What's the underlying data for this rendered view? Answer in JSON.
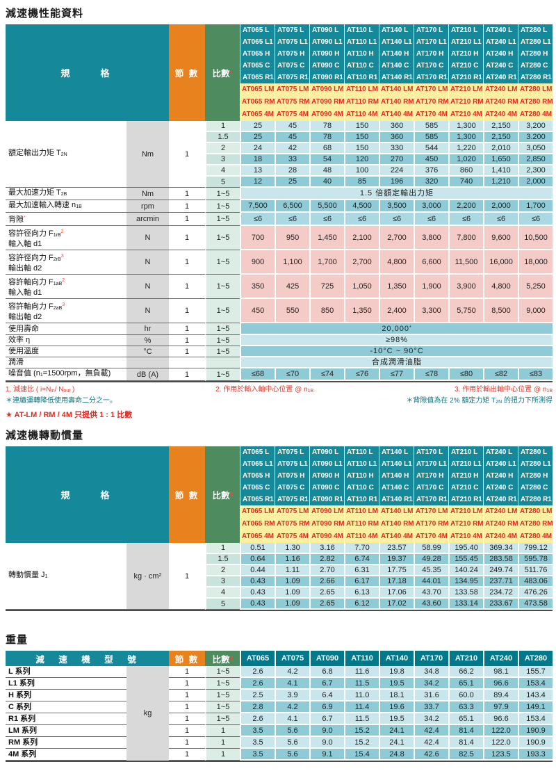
{
  "colors": {
    "teal": "#15899A",
    "teal_dark": "#02798B",
    "orange": "#E8821E",
    "green": "#4E8B5F",
    "yellow": "#FBF0A2",
    "red": "#DF2B21",
    "row_light": "#C8E6EB",
    "row_dark": "#8FCBD6",
    "row_blue": "#AAD9E3",
    "row_pink": "#F5CBC7",
    "mint_a": "#DCEDE6",
    "mint_b": "#C8E3DB",
    "gray_unit": "#D9D9D9",
    "footnote_teal": "#0A7280"
  },
  "main_header": {
    "spec_label": "規　　格",
    "stages_label": "節 數",
    "ratio_label": "比數",
    "ratio_sup": "1",
    "models": [
      "AT065",
      "AT075",
      "AT090",
      "AT110",
      "AT140",
      "AT170",
      "AT210",
      "AT240",
      "AT280"
    ],
    "std_suffixes": [
      "L",
      "L1",
      "H",
      "C",
      "R1"
    ],
    "m_suffixes": [
      "LM",
      "RM",
      "4M"
    ]
  },
  "section_performance": {
    "title": "減速機性能資料",
    "rows": [
      {
        "kind": "group",
        "label": [
          [
            "t",
            "額定輸出力矩 T"
          ],
          [
            "sub",
            "2N"
          ]
        ],
        "unit": [
          [
            "t",
            "Nm"
          ]
        ],
        "stages": "1",
        "subrows": [
          {
            "ratio": "1",
            "stripe": "light",
            "values": [
              "25",
              "45",
              "78",
              "150",
              "360",
              "585",
              "1,300",
              "2,150",
              "3,200"
            ]
          },
          {
            "ratio": "1.5",
            "stripe": "dark",
            "values": [
              "25",
              "45",
              "78",
              "150",
              "360",
              "585",
              "1,300",
              "2,150",
              "3.200"
            ]
          },
          {
            "ratio": "2",
            "stripe": "light",
            "values": [
              "24",
              "42",
              "68",
              "150",
              "330",
              "544",
              "1,220",
              "2,010",
              "3,050"
            ]
          },
          {
            "ratio": "3",
            "stripe": "dark",
            "values": [
              "18",
              "33",
              "54",
              "120",
              "270",
              "450",
              "1,020",
              "1,650",
              "2,850"
            ]
          },
          {
            "ratio": "4",
            "stripe": "light",
            "values": [
              "13",
              "28",
              "48",
              "100",
              "224",
              "376",
              "860",
              "1,410",
              "2,300"
            ]
          },
          {
            "ratio": "5",
            "stripe": "dark",
            "values": [
              "12",
              "25",
              "40",
              "85",
              "196",
              "320",
              "740",
              "1,210",
              "2,000"
            ]
          }
        ]
      },
      {
        "kind": "span",
        "label": [
          [
            "t",
            "最大加速力矩 T"
          ],
          [
            "sub",
            "2B"
          ]
        ],
        "unit": [
          [
            "t",
            "Nm"
          ]
        ],
        "stages": "1",
        "ratio": "1~5",
        "stripe": "light",
        "span": [
          [
            "t",
            "1.5 倍額定輸出力矩"
          ]
        ]
      },
      {
        "kind": "values",
        "label": [
          [
            "t",
            "最大加速輸入轉速 n"
          ],
          [
            "sub",
            "1B"
          ]
        ],
        "unit": [
          [
            "t",
            "rpm"
          ]
        ],
        "stages": "1",
        "ratio": "1~5",
        "stripe": "dark",
        "values": [
          "7,500",
          "6,500",
          "5,500",
          "4,500",
          "3,500",
          "3,000",
          "2,200",
          "2,000",
          "1,700"
        ]
      },
      {
        "kind": "values",
        "label": [
          [
            "t",
            "背隙"
          ],
          [
            "rsup",
            "*"
          ]
        ],
        "unit": [
          [
            "t",
            "arcmin"
          ]
        ],
        "stages": "1",
        "ratio": "1~5",
        "stripe": "blue",
        "values": [
          "≤6",
          "≤6",
          "≤6",
          "≤6",
          "≤6",
          "≤6",
          "≤6",
          "≤6",
          "≤6"
        ]
      },
      {
        "kind": "values",
        "tall": true,
        "label": [
          [
            "t",
            "容許徑向力 F"
          ],
          [
            "sub",
            "1rB"
          ],
          [
            "rsup",
            "2"
          ],
          [
            "br",
            ""
          ],
          [
            "t",
            "輸入軸 d1"
          ]
        ],
        "unit": [
          [
            "t",
            "N"
          ]
        ],
        "stages": "1",
        "ratio": "1~5",
        "stripe": "pink",
        "values": [
          "700",
          "950",
          "1,450",
          "2,100",
          "2,700",
          "3,800",
          "7,800",
          "9,600",
          "10,500"
        ]
      },
      {
        "kind": "values",
        "tall": true,
        "label": [
          [
            "t",
            "容許徑向力 F"
          ],
          [
            "sub",
            "2rB"
          ],
          [
            "rsup",
            "3"
          ],
          [
            "br",
            ""
          ],
          [
            "t",
            "輸出軸 d2"
          ]
        ],
        "unit": [
          [
            "t",
            "N"
          ]
        ],
        "stages": "1",
        "ratio": "1~5",
        "stripe": "pink",
        "values": [
          "900",
          "1,100",
          "1,700",
          "2,700",
          "4,800",
          "6,600",
          "11,500",
          "16,000",
          "18,000"
        ]
      },
      {
        "kind": "values",
        "tall": true,
        "label": [
          [
            "t",
            "容許軸向力 F"
          ],
          [
            "sub",
            "1aB"
          ],
          [
            "rsup",
            "2"
          ],
          [
            "br",
            ""
          ],
          [
            "t",
            "輸入軸 d1"
          ]
        ],
        "unit": [
          [
            "t",
            "N"
          ]
        ],
        "stages": "1",
        "ratio": "1~5",
        "stripe": "pink",
        "values": [
          "350",
          "425",
          "725",
          "1,050",
          "1,350",
          "1,900",
          "3,900",
          "4,800",
          "5,250"
        ]
      },
      {
        "kind": "values",
        "tall": true,
        "label": [
          [
            "t",
            "容許軸向力 F"
          ],
          [
            "sub",
            "2aB"
          ],
          [
            "rsup",
            "3"
          ],
          [
            "br",
            ""
          ],
          [
            "t",
            "輸出軸 d2"
          ]
        ],
        "unit": [
          [
            "t",
            "N"
          ]
        ],
        "stages": "1",
        "ratio": "1~5",
        "stripe": "pink",
        "values": [
          "450",
          "550",
          "850",
          "1,350",
          "2,400",
          "3,300",
          "5,750",
          "8,500",
          "9,000"
        ]
      },
      {
        "kind": "span",
        "label": [
          [
            "t",
            "使用壽命"
          ]
        ],
        "unit": [
          [
            "t",
            "hr"
          ]
        ],
        "stages": "1",
        "ratio": "1~5",
        "stripe": "dark",
        "span": [
          [
            "t",
            "20,000"
          ],
          [
            "sup",
            "*"
          ]
        ]
      },
      {
        "kind": "span",
        "label": [
          [
            "t",
            "效率 η"
          ]
        ],
        "unit": [
          [
            "t",
            "%"
          ]
        ],
        "stages": "1",
        "ratio": "1~5",
        "stripe": "light",
        "span": [
          [
            "t",
            "≥98%"
          ]
        ]
      },
      {
        "kind": "span",
        "label": [
          [
            "t",
            "使用溫度"
          ]
        ],
        "unit": [
          [
            "t",
            "°C"
          ]
        ],
        "stages": "1",
        "ratio": "1~5",
        "stripe": "dark",
        "span": [
          [
            "t",
            "-10°C ~ 90°C"
          ]
        ]
      },
      {
        "kind": "span",
        "label": [
          [
            "t",
            "潤滑"
          ]
        ],
        "unit": [
          [
            "t",
            ""
          ]
        ],
        "stages": "",
        "ratio": "",
        "stripe": "light",
        "span": [
          [
            "t",
            "合成潤滑油脂"
          ]
        ]
      },
      {
        "kind": "values",
        "noise": true,
        "label": [
          [
            "t",
            "噪音值 (n"
          ],
          [
            "sub",
            "1"
          ],
          [
            "t",
            "=1500rpm，無負載)"
          ]
        ],
        "unit": [
          [
            "t",
            "dB (A)"
          ]
        ],
        "stages": "1",
        "ratio": "1~5",
        "stripe": "dark",
        "values": [
          "≤68",
          "≤70",
          "≤74",
          "≤76",
          "≤77",
          "≤78",
          "≤80",
          "≤82",
          "≤83"
        ]
      }
    ]
  },
  "footnotes": {
    "fn1": [
      [
        "t",
        "1. 減速比 ( i=N"
      ],
      [
        "sub",
        "in"
      ],
      [
        "t",
        "/ N"
      ],
      [
        "sub",
        "out"
      ],
      [
        "t",
        " )"
      ]
    ],
    "fn2": [
      [
        "t",
        "2. 作用於輸入軸中心位置 @ n"
      ],
      [
        "sub",
        "1B"
      ]
    ],
    "fn3": [
      [
        "t",
        "3. 作用於輸出軸中心位置 @ n"
      ],
      [
        "sub",
        "1B"
      ]
    ],
    "fn4": [
      [
        "t",
        "＊連續運轉降低使用壽命二分之一。"
      ]
    ],
    "fn5": [
      [
        "t",
        "＊背隙值為在 2% 額定力矩 T"
      ],
      [
        "sub",
        "2N"
      ],
      [
        "t",
        " 的扭力下所測得"
      ]
    ],
    "fn6": [
      [
        "t",
        "★ AT-LM / RM / 4M 只提供 1 : 1 比數"
      ]
    ]
  },
  "section_inertia": {
    "title": "減速機轉動慣量",
    "rows": [
      {
        "kind": "group",
        "label": [
          [
            "t",
            "轉動慣量 J"
          ],
          [
            "sub",
            "1"
          ]
        ],
        "unit": [
          [
            "t",
            "kg · cm"
          ],
          [
            "sup",
            "2"
          ]
        ],
        "stages": "1",
        "subrows": [
          {
            "ratio": "1",
            "stripe": "light",
            "values": [
              "0.51",
              "1.30",
              "3.16",
              "7.70",
              "23.57",
              "58.99",
              "195.40",
              "369.34",
              "799.12"
            ]
          },
          {
            "ratio": "1.5",
            "stripe": "dark",
            "values": [
              "0.64",
              "1.16",
              "2.82",
              "6.74",
              "19.37",
              "49.28",
              "155.45",
              "283.58",
              "595.78"
            ]
          },
          {
            "ratio": "2",
            "stripe": "light",
            "values": [
              "0.44",
              "1.11",
              "2.70",
              "6.31",
              "17.75",
              "45.35",
              "140.24",
              "249.74",
              "511.76"
            ]
          },
          {
            "ratio": "3",
            "stripe": "dark",
            "values": [
              "0.43",
              "1.09",
              "2.66",
              "6.17",
              "17.18",
              "44.01",
              "134.95",
              "237.71",
              "483.06"
            ]
          },
          {
            "ratio": "4",
            "stripe": "light",
            "values": [
              "0.43",
              "1.09",
              "2.65",
              "6.13",
              "17.06",
              "43.70",
              "133.58",
              "234.72",
              "476.26"
            ]
          },
          {
            "ratio": "5",
            "stripe": "dark",
            "values": [
              "0.43",
              "1.09",
              "2.65",
              "6.12",
              "17.02",
              "43.60",
              "133.14",
              "233.67",
              "473.58"
            ]
          }
        ]
      }
    ]
  },
  "section_weight": {
    "title": "重量",
    "header": {
      "model_label": "減　速　機　型　號",
      "stages_label": "節 數",
      "ratio_label": "比數",
      "ratio_sup": "1",
      "columns": [
        "AT065",
        "AT075",
        "AT090",
        "AT110",
        "AT140",
        "AT170",
        "AT210",
        "AT240",
        "AT280"
      ]
    },
    "unit": "kg",
    "rows": [
      {
        "label": "L 系列",
        "stages": "1",
        "ratio": "1~5",
        "stripe": "light",
        "values": [
          "2.6",
          "4.2",
          "6.8",
          "11.6",
          "19.8",
          "34.8",
          "66.2",
          "98.1",
          "155.7"
        ]
      },
      {
        "label": "L1 系列",
        "stages": "1",
        "ratio": "1~5",
        "stripe": "dark",
        "values": [
          "2.6",
          "4.1",
          "6.7",
          "11.5",
          "19.5",
          "34.2",
          "65.1",
          "96.6",
          "153.4"
        ]
      },
      {
        "label": "H 系列",
        "stages": "1",
        "ratio": "1~5",
        "stripe": "light",
        "values": [
          "2.5",
          "3.9",
          "6.4",
          "11.0",
          "18.1",
          "31.6",
          "60.0",
          "89.4",
          "143.4"
        ]
      },
      {
        "label": "C 系列",
        "stages": "1",
        "ratio": "1~5",
        "stripe": "dark",
        "values": [
          "2.8",
          "4.2",
          "6.9",
          "11.4",
          "19.6",
          "33.7",
          "63.3",
          "97.9",
          "149.1"
        ]
      },
      {
        "label": "R1 系列",
        "stages": "1",
        "ratio": "1~5",
        "stripe": "light",
        "values": [
          "2.6",
          "4.1",
          "6.7",
          "11.5",
          "19.5",
          "34.2",
          "65.1",
          "96.6",
          "153.4"
        ]
      },
      {
        "label": "LM 系列",
        "stages": "1",
        "ratio": "1",
        "stripe": "dark",
        "values": [
          "3.5",
          "5.6",
          "9.0",
          "15.2",
          "24.1",
          "42.4",
          "81.4",
          "122.0",
          "190.9"
        ]
      },
      {
        "label": "RM 系列",
        "stages": "1",
        "ratio": "1",
        "stripe": "light",
        "values": [
          "3.5",
          "5.6",
          "9.0",
          "15.2",
          "24.1",
          "42.4",
          "81.4",
          "122.0",
          "190.9"
        ]
      },
      {
        "label": "4M 系列",
        "stages": "1",
        "ratio": "1",
        "stripe": "dark",
        "values": [
          "3.5",
          "5.6",
          "9.1",
          "15.4",
          "24.8",
          "42.6",
          "82.5",
          "123.5",
          "193.3"
        ]
      }
    ]
  }
}
